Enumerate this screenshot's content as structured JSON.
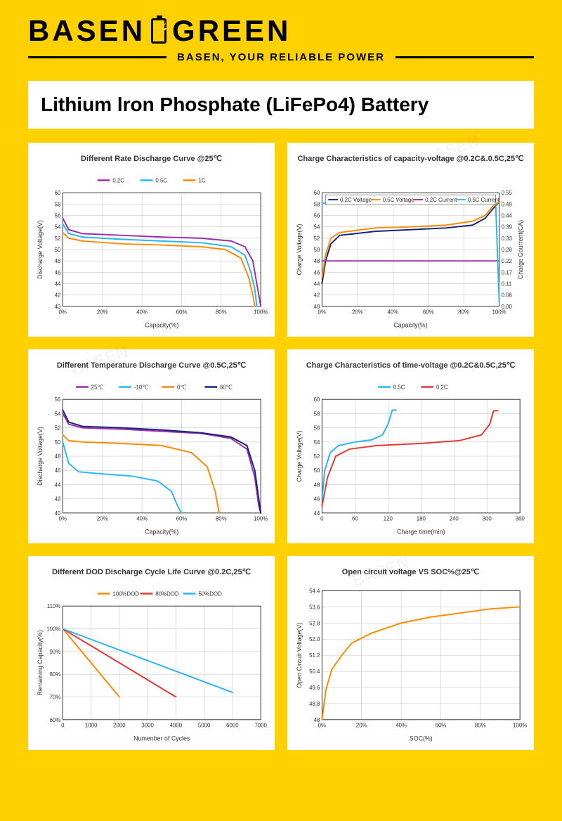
{
  "header": {
    "logo_left": "BASEN",
    "logo_right": "GREEN",
    "tagline": "BASEN, YOUR RELIABLE POWER"
  },
  "title": "Lithium lron Phosphate (LiFePo4) Battery",
  "palette": {
    "purple": "#9b2fae",
    "cyan": "#29b6f6",
    "orange": "#ff8a00",
    "red": "#e53935",
    "darkblue": "#1a237e",
    "grid": "#bdbdbd",
    "axis": "#333333",
    "bg": "#ffffff",
    "page_bg": "#ffd100"
  },
  "charts": [
    {
      "id": "c1",
      "title": "Different Rate Discharge Curve @25℃",
      "xlabel": "Capacity(%)",
      "ylabel": "Discharge Voltage(V)",
      "xlim": [
        0,
        100
      ],
      "xstep": 20,
      "xfmt": "pct",
      "ylim": [
        40,
        60
      ],
      "ystep": 2,
      "legend_pos": "top",
      "series": [
        {
          "name": "0.2C",
          "color": "#9b2fae",
          "data": [
            [
              0,
              55.5
            ],
            [
              3,
              53.5
            ],
            [
              10,
              52.8
            ],
            [
              30,
              52.5
            ],
            [
              50,
              52.2
            ],
            [
              70,
              52
            ],
            [
              85,
              51.5
            ],
            [
              92,
              50.5
            ],
            [
              96,
              48
            ],
            [
              98,
              44
            ],
            [
              100,
              40
            ]
          ]
        },
        {
          "name": "0.5C",
          "color": "#29b6f6",
          "data": [
            [
              0,
              54.5
            ],
            [
              3,
              52.8
            ],
            [
              10,
              52.2
            ],
            [
              30,
              51.8
            ],
            [
              50,
              51.5
            ],
            [
              70,
              51.2
            ],
            [
              85,
              50.5
            ],
            [
              92,
              49
            ],
            [
              95,
              46
            ],
            [
              97,
              43
            ],
            [
              98,
              40
            ]
          ]
        },
        {
          "name": "1C",
          "color": "#ff8a00",
          "data": [
            [
              0,
              53
            ],
            [
              3,
              52
            ],
            [
              10,
              51.5
            ],
            [
              30,
              51
            ],
            [
              50,
              50.8
            ],
            [
              70,
              50.5
            ],
            [
              82,
              50
            ],
            [
              90,
              48.5
            ],
            [
              94,
              45
            ],
            [
              96,
              42
            ],
            [
              97,
              40
            ]
          ]
        }
      ]
    },
    {
      "id": "c2",
      "title": "Charge Characteristics of capacity-voltage @0.2C&.0.5C,25℃",
      "xlabel": "Capacity(%)",
      "ylabel": "Charge Voltage(V)",
      "ylabel2": "Charge Courrent(CA)",
      "xlim": [
        0,
        100
      ],
      "xstep": 20,
      "xfmt": "pct",
      "ylim": [
        40,
        60
      ],
      "ystep": 2,
      "y2lim": [
        0,
        0.55
      ],
      "y2step": 0.055,
      "legend_pos": "inside-top",
      "legend_box": true,
      "series": [
        {
          "name": "0.2C Voltage",
          "color": "#1a237e",
          "data": [
            [
              0,
              44
            ],
            [
              2,
              48
            ],
            [
              5,
              51
            ],
            [
              10,
              52.5
            ],
            [
              30,
              53.2
            ],
            [
              50,
              53.5
            ],
            [
              70,
              53.8
            ],
            [
              85,
              54.3
            ],
            [
              92,
              55.5
            ],
            [
              96,
              57
            ],
            [
              100,
              58.4
            ]
          ]
        },
        {
          "name": "0.5C Voltage",
          "color": "#ff8a00",
          "data": [
            [
              0,
              45
            ],
            [
              2,
              49
            ],
            [
              5,
              52
            ],
            [
              10,
              53
            ],
            [
              30,
              53.8
            ],
            [
              50,
              54
            ],
            [
              70,
              54.3
            ],
            [
              85,
              55
            ],
            [
              92,
              56
            ],
            [
              96,
              57.5
            ],
            [
              100,
              58.4
            ]
          ]
        },
        {
          "name": "0.2C Current",
          "color": "#9b2fae",
          "y2": true,
          "data": [
            [
              0,
              0.22
            ],
            [
              95,
              0.22
            ],
            [
              100,
              0.22
            ]
          ]
        },
        {
          "name": "0.5C Current",
          "color": "#29b6f6",
          "y2": true,
          "data": [
            [
              0,
              0.5
            ],
            [
              90,
              0.5
            ],
            [
              95,
              0.5
            ],
            [
              98,
              0.5
            ],
            [
              100,
              0.02
            ]
          ]
        }
      ]
    },
    {
      "id": "c3",
      "title": "Different Temperature Discharge Curve @0.5C,25℃",
      "xlabel": "Capacity(%)",
      "ylabel": "Discharge Voltage(V)",
      "xlim": [
        0,
        100
      ],
      "xstep": 20,
      "xfmt": "pct",
      "ylim": [
        40,
        56
      ],
      "ystep": 2,
      "legend_pos": "top",
      "series": [
        {
          "name": "25℃",
          "color": "#9b2fae",
          "data": [
            [
              0,
              54
            ],
            [
              3,
              52.5
            ],
            [
              10,
              52
            ],
            [
              30,
              51.8
            ],
            [
              50,
              51.5
            ],
            [
              70,
              51.2
            ],
            [
              85,
              50.5
            ],
            [
              93,
              49
            ],
            [
              97,
              45
            ],
            [
              99,
              41
            ],
            [
              100,
              40
            ]
          ]
        },
        {
          "name": "-10℃",
          "color": "#29b6f6",
          "data": [
            [
              0,
              50
            ],
            [
              3,
              47
            ],
            [
              8,
              45.8
            ],
            [
              20,
              45.5
            ],
            [
              35,
              45.2
            ],
            [
              48,
              44.5
            ],
            [
              55,
              43
            ],
            [
              58,
              41
            ],
            [
              60,
              40
            ]
          ]
        },
        {
          "name": "0℃",
          "color": "#ff8a00",
          "data": [
            [
              0,
              51
            ],
            [
              3,
              50.2
            ],
            [
              10,
              50
            ],
            [
              30,
              49.8
            ],
            [
              50,
              49.5
            ],
            [
              65,
              48.5
            ],
            [
              73,
              46.5
            ],
            [
              77,
              43
            ],
            [
              79,
              40
            ]
          ]
        },
        {
          "name": "60℃",
          "color": "#1a237e",
          "data": [
            [
              0,
              54.5
            ],
            [
              3,
              52.8
            ],
            [
              10,
              52.2
            ],
            [
              30,
              52
            ],
            [
              50,
              51.7
            ],
            [
              70,
              51.3
            ],
            [
              85,
              50.7
            ],
            [
              93,
              49.5
            ],
            [
              97,
              46
            ],
            [
              99,
              42
            ],
            [
              100,
              40
            ]
          ]
        }
      ]
    },
    {
      "id": "c4",
      "title": "Charge Characteristics of time-voltage @0.2C&0.5C,25℃",
      "xlabel": "Charge time(min)",
      "ylabel": "Charge Voltage(V)",
      "xlim": [
        0,
        360
      ],
      "xstep": 60,
      "ylim": [
        44,
        60
      ],
      "ystep": 2,
      "legend_pos": "top",
      "series": [
        {
          "name": "0.5C",
          "color": "#29b6f6",
          "data": [
            [
              0,
              46
            ],
            [
              5,
              50
            ],
            [
              15,
              52.5
            ],
            [
              30,
              53.5
            ],
            [
              60,
              54
            ],
            [
              90,
              54.3
            ],
            [
              110,
              55
            ],
            [
              120,
              56.5
            ],
            [
              128,
              58.5
            ],
            [
              135,
              58.5
            ]
          ]
        },
        {
          "name": "0.2C",
          "color": "#e53935",
          "data": [
            [
              0,
              45
            ],
            [
              10,
              49
            ],
            [
              25,
              52
            ],
            [
              50,
              53
            ],
            [
              100,
              53.5
            ],
            [
              180,
              53.8
            ],
            [
              250,
              54.2
            ],
            [
              290,
              55
            ],
            [
              305,
              56.5
            ],
            [
              312,
              58.4
            ],
            [
              320,
              58.4
            ]
          ]
        }
      ]
    },
    {
      "id": "c5",
      "title": "Different DOD Discharge Cycle Life Curve @0.2C,25℃",
      "xlabel": "Numenber of Cycles",
      "ylabel": "Remaining Capacity(%)",
      "xlim": [
        0,
        7000
      ],
      "xstep": 1000,
      "ylim": [
        60,
        110
      ],
      "ystep": 10,
      "yfmt": "pct",
      "legend_pos": "top",
      "series": [
        {
          "name": "100%DOD",
          "color": "#ff8a00",
          "data": [
            [
              0,
              100
            ],
            [
              2000,
              70
            ]
          ]
        },
        {
          "name": "80%DOD",
          "color": "#e53935",
          "data": [
            [
              0,
              100
            ],
            [
              4000,
              70
            ]
          ]
        },
        {
          "name": "50%DOD",
          "color": "#29b6f6",
          "data": [
            [
              0,
              100
            ],
            [
              6000,
              72
            ]
          ]
        }
      ]
    },
    {
      "id": "c6",
      "title": "Open circuit voltage VS SOC%@25℃",
      "xlabel": "SOC(%)",
      "ylabel": "Open Circuit Voltage(V)",
      "xlim": [
        0,
        100
      ],
      "xstep": 20,
      "xfmt": "pct",
      "ylim": [
        48,
        54.4
      ],
      "ystep": 0.8,
      "series": [
        {
          "name": "",
          "color": "#ff8a00",
          "data": [
            [
              0,
              48
            ],
            [
              2,
              49.5
            ],
            [
              5,
              50.5
            ],
            [
              10,
              51.2
            ],
            [
              15,
              51.8
            ],
            [
              25,
              52.3
            ],
            [
              40,
              52.8
            ],
            [
              55,
              53.1
            ],
            [
              70,
              53.3
            ],
            [
              85,
              53.5
            ],
            [
              100,
              53.6
            ]
          ]
        }
      ]
    }
  ]
}
